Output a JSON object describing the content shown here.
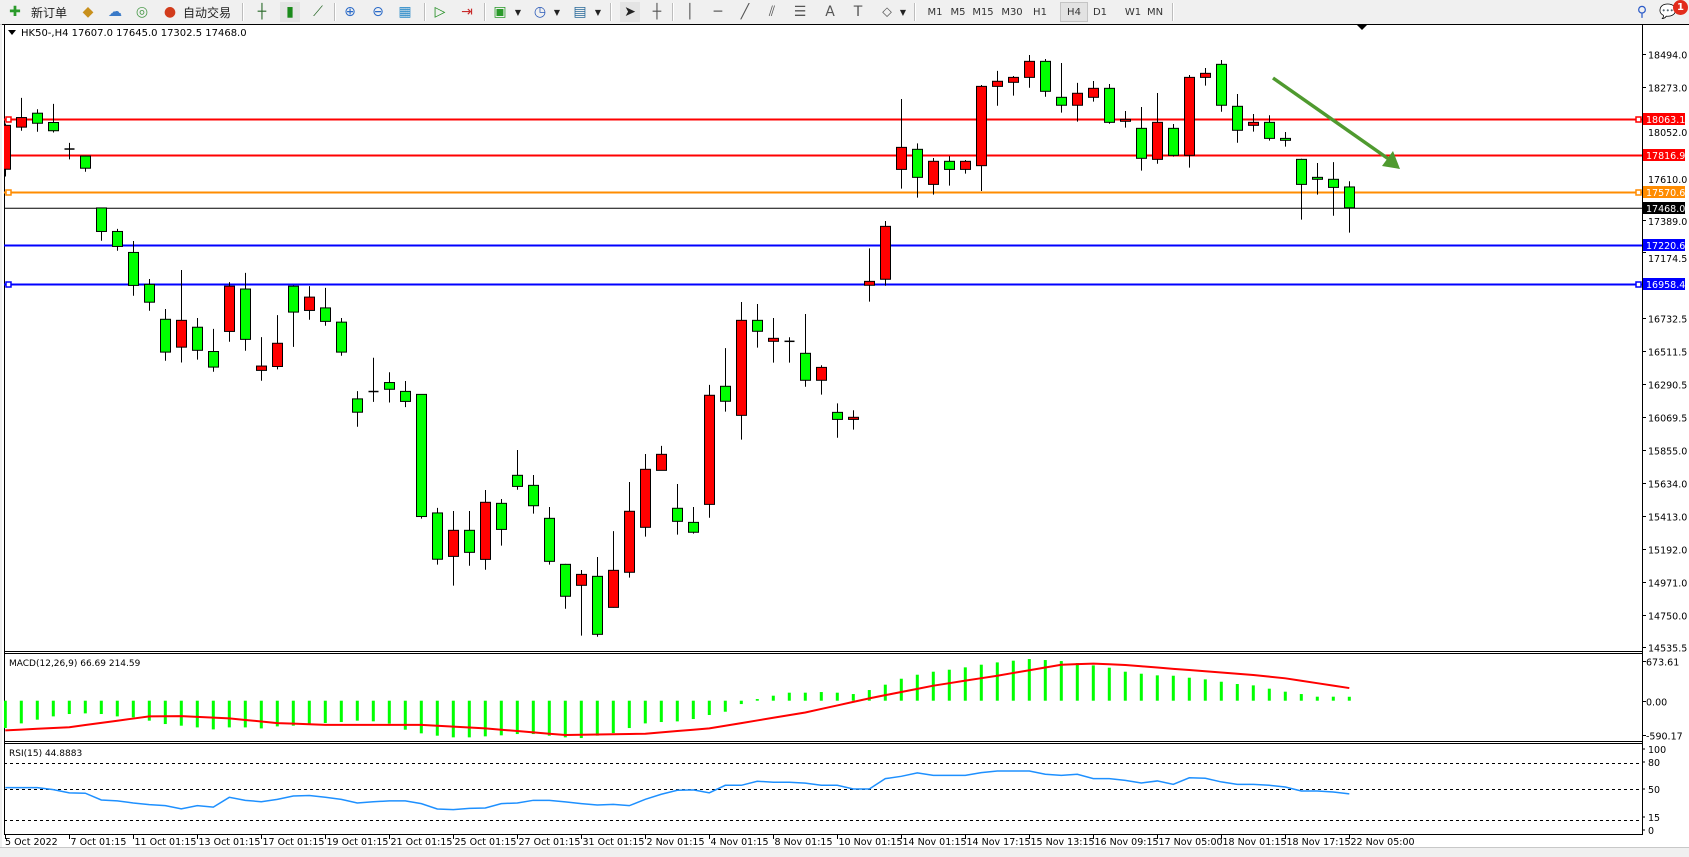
{
  "toolbar": {
    "new_order_label": "新订单",
    "auto_trading_label": "自动交易",
    "timeframes": [
      "M1",
      "M5",
      "M15",
      "M30",
      "H1",
      "H4",
      "D1",
      "W1",
      "MN"
    ],
    "active_timeframe": "H4",
    "notification_count": "1",
    "icons": [
      "new-order-icon",
      "market-watch-icon",
      "navigator-icon",
      "signals-icon",
      "auto-trading-icon",
      "bar-chart-icon",
      "candlestick-icon",
      "line-chart-icon",
      "zoom-in-icon",
      "zoom-out-icon",
      "tile-windows-icon",
      "auto-scroll-icon",
      "chart-shift-icon",
      "template-icon",
      "periods-clock-icon",
      "indicators-icon",
      "cursor-icon",
      "crosshair-icon",
      "vertical-line-icon",
      "horizontal-line-icon",
      "trendline-icon",
      "fibonacci-channel-icon",
      "fibonacci-retracement-icon",
      "text-icon",
      "text-label-icon",
      "shapes-icon",
      "search-icon",
      "chat-icon"
    ]
  },
  "chart": {
    "header": "HK50-,H4  17607.0 17645.0 17302.5 17468.0"
  },
  "chart_data": {
    "type": "candlestick",
    "symbol": "HK50-",
    "timeframe": "H4",
    "bull_color": "#ff0000",
    "bear_color": "#00ff00",
    "ohlc": [
      [
        17725,
        18030,
        17677,
        18018
      ],
      [
        18006,
        18201,
        17982,
        18070
      ],
      [
        18099,
        18125,
        17975,
        18032
      ],
      [
        18037,
        18161,
        17970,
        17982
      ],
      [
        17860,
        17901,
        17791,
        17855
      ],
      [
        17813,
        17815,
        17708,
        17732
      ],
      [
        17467,
        17470,
        17248,
        17310
      ],
      [
        17310,
        17327,
        17181,
        17210
      ],
      [
        17170,
        17246,
        16881,
        16950
      ],
      [
        16957,
        16993,
        16781,
        16838
      ],
      [
        16724,
        16793,
        16447,
        16505
      ],
      [
        16538,
        17053,
        16436,
        16717
      ],
      [
        16671,
        16733,
        16455,
        16517
      ],
      [
        16509,
        16660,
        16374,
        16405
      ],
      [
        16643,
        16972,
        16574,
        16945
      ],
      [
        16926,
        17034,
        16514,
        16590
      ],
      [
        16383,
        16605,
        16314,
        16412
      ],
      [
        16409,
        16752,
        16390,
        16564
      ],
      [
        16945,
        16950,
        16540,
        16772
      ],
      [
        16783,
        16945,
        16721,
        16872
      ],
      [
        16800,
        16934,
        16681,
        16710
      ],
      [
        16705,
        16733,
        16481,
        16505
      ],
      [
        16193,
        16245,
        16007,
        16104
      ],
      [
        16242,
        16467,
        16173,
        16238
      ],
      [
        16302,
        16371,
        16169,
        16257
      ],
      [
        16243,
        16312,
        16138,
        16176
      ],
      [
        16223,
        16225,
        15394,
        15408
      ],
      [
        15432,
        15466,
        15087,
        15123
      ],
      [
        15142,
        15445,
        14947,
        15316
      ],
      [
        15316,
        15445,
        15080,
        15169
      ],
      [
        15122,
        15585,
        15053,
        15503
      ],
      [
        15496,
        15525,
        15214,
        15322
      ],
      [
        15683,
        15852,
        15587,
        15609
      ],
      [
        15616,
        15685,
        15427,
        15480
      ],
      [
        15396,
        15472,
        15087,
        15109
      ],
      [
        15089,
        15092,
        14793,
        14876
      ],
      [
        14949,
        15051,
        14613,
        15022
      ],
      [
        15009,
        15138,
        14606,
        14622
      ],
      [
        14802,
        15311,
        14800,
        15049
      ],
      [
        15036,
        15638,
        15000,
        15443
      ],
      [
        15336,
        15825,
        15274,
        15723
      ],
      [
        15716,
        15879,
        15716,
        15823
      ],
      [
        15463,
        15625,
        15287,
        15376
      ],
      [
        15369,
        15472,
        15294,
        15303
      ],
      [
        15489,
        16286,
        15400,
        16217
      ],
      [
        16277,
        16532,
        16108,
        16177
      ],
      [
        16083,
        16839,
        15921,
        16717
      ],
      [
        16717,
        16826,
        16535,
        16644
      ],
      [
        16577,
        16733,
        16435,
        16597
      ],
      [
        16577,
        16604,
        16435,
        16573
      ],
      [
        16497,
        16759,
        16274,
        16317
      ],
      [
        16317,
        16417,
        16221,
        16403
      ],
      [
        16103,
        16163,
        15934,
        16056
      ],
      [
        16056,
        16117,
        15988,
        16070
      ],
      [
        16951,
        17197,
        16842,
        16977
      ],
      [
        16991,
        17380,
        16948,
        17344
      ],
      [
        17724,
        18194,
        17596,
        17871
      ],
      [
        17858,
        17898,
        17536,
        17671
      ],
      [
        17624,
        17800,
        17556,
        17778
      ],
      [
        17778,
        17813,
        17616,
        17724
      ],
      [
        17724,
        17787,
        17696,
        17778
      ],
      [
        17749,
        18287,
        17580,
        18278
      ],
      [
        18278,
        18381,
        18149,
        18312
      ],
      [
        18305,
        18347,
        18216,
        18338
      ],
      [
        18338,
        18487,
        18269,
        18445
      ],
      [
        18445,
        18461,
        18209,
        18245
      ],
      [
        18205,
        18434,
        18103,
        18152
      ],
      [
        18152,
        18301,
        18043,
        18232
      ],
      [
        18205,
        18314,
        18176,
        18265
      ],
      [
        18265,
        18294,
        18029,
        18038
      ],
      [
        18045,
        18114,
        18003,
        18058
      ],
      [
        17998,
        18140,
        17716,
        17798
      ],
      [
        17791,
        18234,
        17762,
        18038
      ],
      [
        17998,
        18027,
        17809,
        17818
      ],
      [
        17818,
        18354,
        17736,
        18338
      ],
      [
        18338,
        18401,
        18283,
        18365
      ],
      [
        18425,
        18454,
        18109,
        18152
      ],
      [
        18145,
        18227,
        17902,
        17985
      ],
      [
        18018,
        18094,
        17976,
        18038
      ],
      [
        18038,
        18085,
        17916,
        17931
      ],
      [
        17931,
        17974,
        17876,
        17918
      ],
      [
        17791,
        17795,
        17389,
        17624
      ],
      [
        17671,
        17767,
        17556,
        17658
      ],
      [
        17658,
        17773,
        17415,
        17604
      ],
      [
        17607,
        17645,
        17302.5,
        17468
      ]
    ],
    "price_axis": [
      "18494.0",
      "18273.0",
      "18052.0",
      "17610.0",
      "17389.0",
      "17174.5",
      "16732.5",
      "16511.5",
      "16290.5",
      "16069.5",
      "15855.0",
      "15634.0",
      "15413.0",
      "15192.0",
      "14971.0",
      "14750.0",
      "14535.5"
    ],
    "price_axis_values": [
      18494,
      18273,
      18052,
      17610,
      17389,
      17174.5,
      16732.5,
      16511.5,
      16290.5,
      16069.5,
      15855,
      15634,
      15413,
      15192,
      14971,
      14750,
      14535.5
    ],
    "levels": [
      {
        "label": "18063.1",
        "price": 18063.1,
        "color": "#ff0000"
      },
      {
        "label": "17816.9",
        "price": 17816.9,
        "color": "#ff0000"
      },
      {
        "label": "17570.6",
        "price": 17570.6,
        "color": "#ff8c00"
      },
      {
        "label": "17220.6",
        "price": 17220.6,
        "color": "#0000ff"
      },
      {
        "label": "16958.4",
        "price": 16958.4,
        "color": "#0000ff"
      }
    ],
    "bid": {
      "label": "17468.0",
      "price": 17468.0,
      "color": "#000000"
    },
    "trend_arrow_color": "#4f9a2f",
    "time_axis": [
      "5 Oct 2022",
      "7 Oct 01:15",
      "11 Oct 01:15",
      "13 Oct 01:15",
      "17 Oct 01:15",
      "19 Oct 01:15",
      "21 Oct 01:15",
      "25 Oct 01:15",
      "27 Oct 01:15",
      "31 Oct 01:15",
      "2 Nov 01:15",
      "4 Nov 01:15",
      "8 Nov 01:15",
      "10 Nov 01:15",
      "14 Nov 01:15",
      "14 Nov 17:15",
      "15 Nov 13:15",
      "16 Nov 09:15",
      "17 Nov 05:00",
      "18 Nov 01:15",
      "18 Nov 17:15",
      "22 Nov 05:00"
    ],
    "macd": {
      "label": "MACD(12,26,9) 66.69 214.59",
      "axis": [
        "673.61",
        "0.00",
        "-590.17"
      ],
      "axis_values": [
        673.61,
        0,
        -590.17
      ],
      "hist_color": "#00ff00",
      "signal_color": "#ff0000",
      "main": [
        -464,
        -385,
        -322,
        -266,
        -226,
        -215,
        -226,
        -266,
        -283,
        -339,
        -396,
        -424,
        -453,
        -487,
        -453,
        -453,
        -470,
        -436,
        -424,
        -391,
        -379,
        -362,
        -339,
        -350,
        -390,
        -492,
        -554,
        -594,
        -622,
        -622,
        -605,
        -588,
        -566,
        -566,
        -594,
        -622,
        -634,
        -594,
        -549,
        -464,
        -385,
        -362,
        -351,
        -311,
        -243,
        -187,
        -57,
        28,
        85,
        136,
        136,
        147,
        136,
        113,
        181,
        272,
        373,
        441,
        492,
        526,
        566,
        611,
        650,
        679,
        707,
        690,
        673,
        639,
        600,
        560,
        492,
        458,
        430,
        424,
        390,
        362,
        322,
        283,
        260,
        204,
        153,
        113,
        68,
        68,
        66.69
      ],
      "signal": [
        -503,
        -490,
        -477,
        -463,
        -450,
        -413,
        -376,
        -340,
        -303,
        -266,
        -264,
        -262,
        -275,
        -288,
        -300,
        -327,
        -353,
        -380,
        -390,
        -400,
        -410,
        -410,
        -410,
        -410,
        -410,
        -410,
        -410,
        -425,
        -440,
        -455,
        -470,
        -493,
        -515,
        -538,
        -560,
        -583,
        -578,
        -574,
        -569,
        -565,
        -560,
        -537,
        -515,
        -492,
        -470,
        -425,
        -380,
        -335,
        -290,
        -245,
        -200,
        -140,
        -80,
        -20,
        40,
        94,
        148,
        201,
        255,
        297,
        340,
        382,
        424,
        471,
        517,
        564,
        610,
        620,
        630,
        618,
        605,
        584,
        563,
        541,
        520,
        499,
        478,
        457,
        436,
        408,
        380,
        339,
        297,
        256,
        214.59
      ]
    },
    "rsi": {
      "label": "RSI(15) 44.8883",
      "axis": [
        "100",
        "80",
        "50",
        "15",
        "0"
      ],
      "levels": [
        80,
        50,
        15
      ],
      "color": "#1e90ff",
      "values": [
        51.9,
        51.9,
        51.9,
        49.6,
        46,
        45.6,
        38,
        37,
        34.6,
        32.8,
        31.6,
        28,
        31.6,
        30,
        41,
        37.6,
        36,
        38.7,
        42.5,
        43,
        41,
        38.7,
        34.6,
        36,
        37,
        37,
        33.9,
        27.9,
        27.1,
        28.6,
        29,
        33.9,
        34.6,
        37.6,
        37.6,
        35.8,
        33.9,
        32.4,
        33,
        31.6,
        38.7,
        44.4,
        48.9,
        49.3,
        46,
        54.5,
        54.5,
        59,
        58,
        58,
        57,
        54.5,
        54.5,
        50.4,
        50.4,
        62,
        64.6,
        68.4,
        65.7,
        65.7,
        65.7,
        68.8,
        70.6,
        70.6,
        70.6,
        66.9,
        65.7,
        66.9,
        62,
        62,
        60,
        57.1,
        59.4,
        55.6,
        63,
        62.4,
        58.3,
        55.6,
        55.6,
        54.5,
        52.6,
        48.1,
        48.1,
        47,
        44.8883
      ]
    }
  }
}
